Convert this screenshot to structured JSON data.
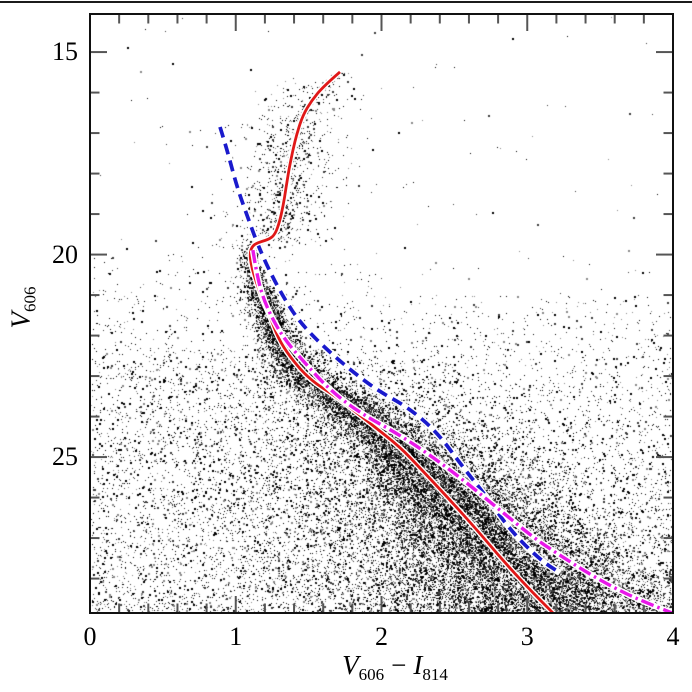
{
  "page": {
    "divider_rule_color": "#1b1b1b",
    "background": "#ffffff"
  },
  "labels": {
    "y_title": {
      "main": "V",
      "sub": "606"
    },
    "x_title": {
      "var1": "V",
      "sub1": "606",
      "op": "−",
      "var2": "I",
      "sub2": "814"
    },
    "y_tick_labels": [
      "15",
      "20",
      "25"
    ],
    "x_tick_labels": [
      "0",
      "1",
      "2",
      "3",
      "4"
    ]
  },
  "chart_data": {
    "type": "scatter",
    "title": "",
    "xlabel": "V606 − I814",
    "ylabel": "V606",
    "x_range": [
      0,
      4
    ],
    "y_range": [
      14.06,
      28.85
    ],
    "y_inverted": true,
    "grid": false,
    "x_axis": {
      "major_ticks": [
        0,
        1,
        2,
        3,
        4
      ],
      "minor_step": 0.2
    },
    "y_axis": {
      "major_ticks": [
        15,
        20,
        25
      ],
      "minor_step": 1
    },
    "frame_color": "#111111",
    "tick_color": "#555555",
    "series": [
      {
        "name": "isochrone-red-solid",
        "type": "line",
        "style": "solid",
        "color": "#e01818",
        "width": 2.8,
        "points": [
          [
            1.715,
            15.49
          ],
          [
            1.6,
            15.85
          ],
          [
            1.52,
            16.2
          ],
          [
            1.462,
            16.55
          ],
          [
            1.42,
            17.0
          ],
          [
            1.39,
            17.45
          ],
          [
            1.365,
            17.9
          ],
          [
            1.345,
            18.35
          ],
          [
            1.325,
            18.8
          ],
          [
            1.3,
            19.2
          ],
          [
            1.27,
            19.5
          ],
          [
            1.23,
            19.62
          ],
          [
            1.175,
            19.68
          ],
          [
            1.13,
            19.74
          ],
          [
            1.105,
            19.85
          ],
          [
            1.098,
            20.01
          ],
          [
            1.105,
            20.23
          ],
          [
            1.125,
            20.51
          ],
          [
            1.153,
            20.8
          ],
          [
            1.187,
            21.15
          ],
          [
            1.235,
            21.52
          ],
          [
            1.29,
            22.06
          ],
          [
            1.372,
            22.53
          ],
          [
            1.51,
            23.1
          ],
          [
            1.695,
            23.52
          ],
          [
            1.92,
            24.16
          ],
          [
            2.127,
            24.75
          ],
          [
            2.264,
            25.27
          ],
          [
            2.47,
            26.06
          ],
          [
            2.655,
            26.8
          ],
          [
            2.813,
            27.47
          ],
          [
            3.0,
            28.21
          ],
          [
            3.177,
            28.85
          ]
        ]
      },
      {
        "name": "fiducial-blue-dashed",
        "type": "line",
        "style": "dashed",
        "color": "#1a1acc",
        "width": 3.7,
        "dash": [
          11,
          6.5
        ],
        "points": [
          [
            0.892,
            16.85
          ],
          [
            0.933,
            17.32
          ],
          [
            1.008,
            18.33
          ],
          [
            1.084,
            19.1
          ],
          [
            1.153,
            19.77
          ],
          [
            1.235,
            20.43
          ],
          [
            1.338,
            21.12
          ],
          [
            1.441,
            21.67
          ],
          [
            1.578,
            22.19
          ],
          [
            1.763,
            22.78
          ],
          [
            1.969,
            23.35
          ],
          [
            2.182,
            23.77
          ],
          [
            2.381,
            24.38
          ],
          [
            2.559,
            25.25
          ],
          [
            2.724,
            25.99
          ],
          [
            2.882,
            26.8
          ],
          [
            3.088,
            27.54
          ],
          [
            3.225,
            27.86
          ]
        ]
      },
      {
        "name": "fiducial-magenta-dashdot",
        "type": "line",
        "style": "dashdot",
        "color": "#e818e8",
        "width": 3.4,
        "dash": [
          13,
          4,
          2.5,
          4
        ],
        "points": [
          [
            1.118,
            19.89
          ],
          [
            1.139,
            20.38
          ],
          [
            1.18,
            21.0
          ],
          [
            1.249,
            21.57
          ],
          [
            1.338,
            22.11
          ],
          [
            1.475,
            22.68
          ],
          [
            1.647,
            23.35
          ],
          [
            1.852,
            23.91
          ],
          [
            2.106,
            24.41
          ],
          [
            2.353,
            25.0
          ],
          [
            2.587,
            25.64
          ],
          [
            2.813,
            26.31
          ],
          [
            3.039,
            26.98
          ],
          [
            3.272,
            27.54
          ],
          [
            3.499,
            28.04
          ],
          [
            3.725,
            28.46
          ],
          [
            3.993,
            28.85
          ]
        ]
      },
      {
        "name": "star-points",
        "type": "scatter_density",
        "seed": 1370,
        "point_colors": [
          "#000000",
          "#3c3c3c",
          "#8a8a8a"
        ],
        "color_weights": [
          0.5,
          0.27,
          0.23
        ],
        "big_point_frac": 0.22,
        "components": [
          {
            "kind": "ridge",
            "n": 16500,
            "mag_min": 19.78,
            "mag_max": 29.15,
            "mag_pow": 0.62,
            "sigma0": 0.03,
            "sigma_scale": 3.1,
            "wide_frac": 0.22,
            "wide_mult": 2.0
          },
          {
            "kind": "rgb_line",
            "n": 300,
            "mag_min": 15.5,
            "mag_max": 19.78,
            "mag_pow": 0.85,
            "sigma": 0.045
          },
          {
            "kind": "plume",
            "n": 700,
            "mag_min": 15.7,
            "mag_max": 19.85,
            "mag_pow": 0.75,
            "sigma": 0.2,
            "offset": -0.02
          },
          {
            "kind": "halo",
            "n": 7000,
            "mag_min": 22.3,
            "mag_max": 29.15,
            "mag_pow": 0.7,
            "sigma": 0.75,
            "left_mult": 1.15,
            "right_mult": 0.7
          },
          {
            "kind": "field",
            "n": 8200,
            "mag_min": 19.2,
            "mag_span": 9.8,
            "mag_pow": 0.5,
            "c_min": 0.01,
            "c_max": 3.99
          },
          {
            "kind": "bright_field",
            "n": 80,
            "mag_min": 14.1,
            "mag_max": 19.4,
            "c_min": 0.05,
            "c_max": 3.95
          }
        ]
      }
    ]
  }
}
